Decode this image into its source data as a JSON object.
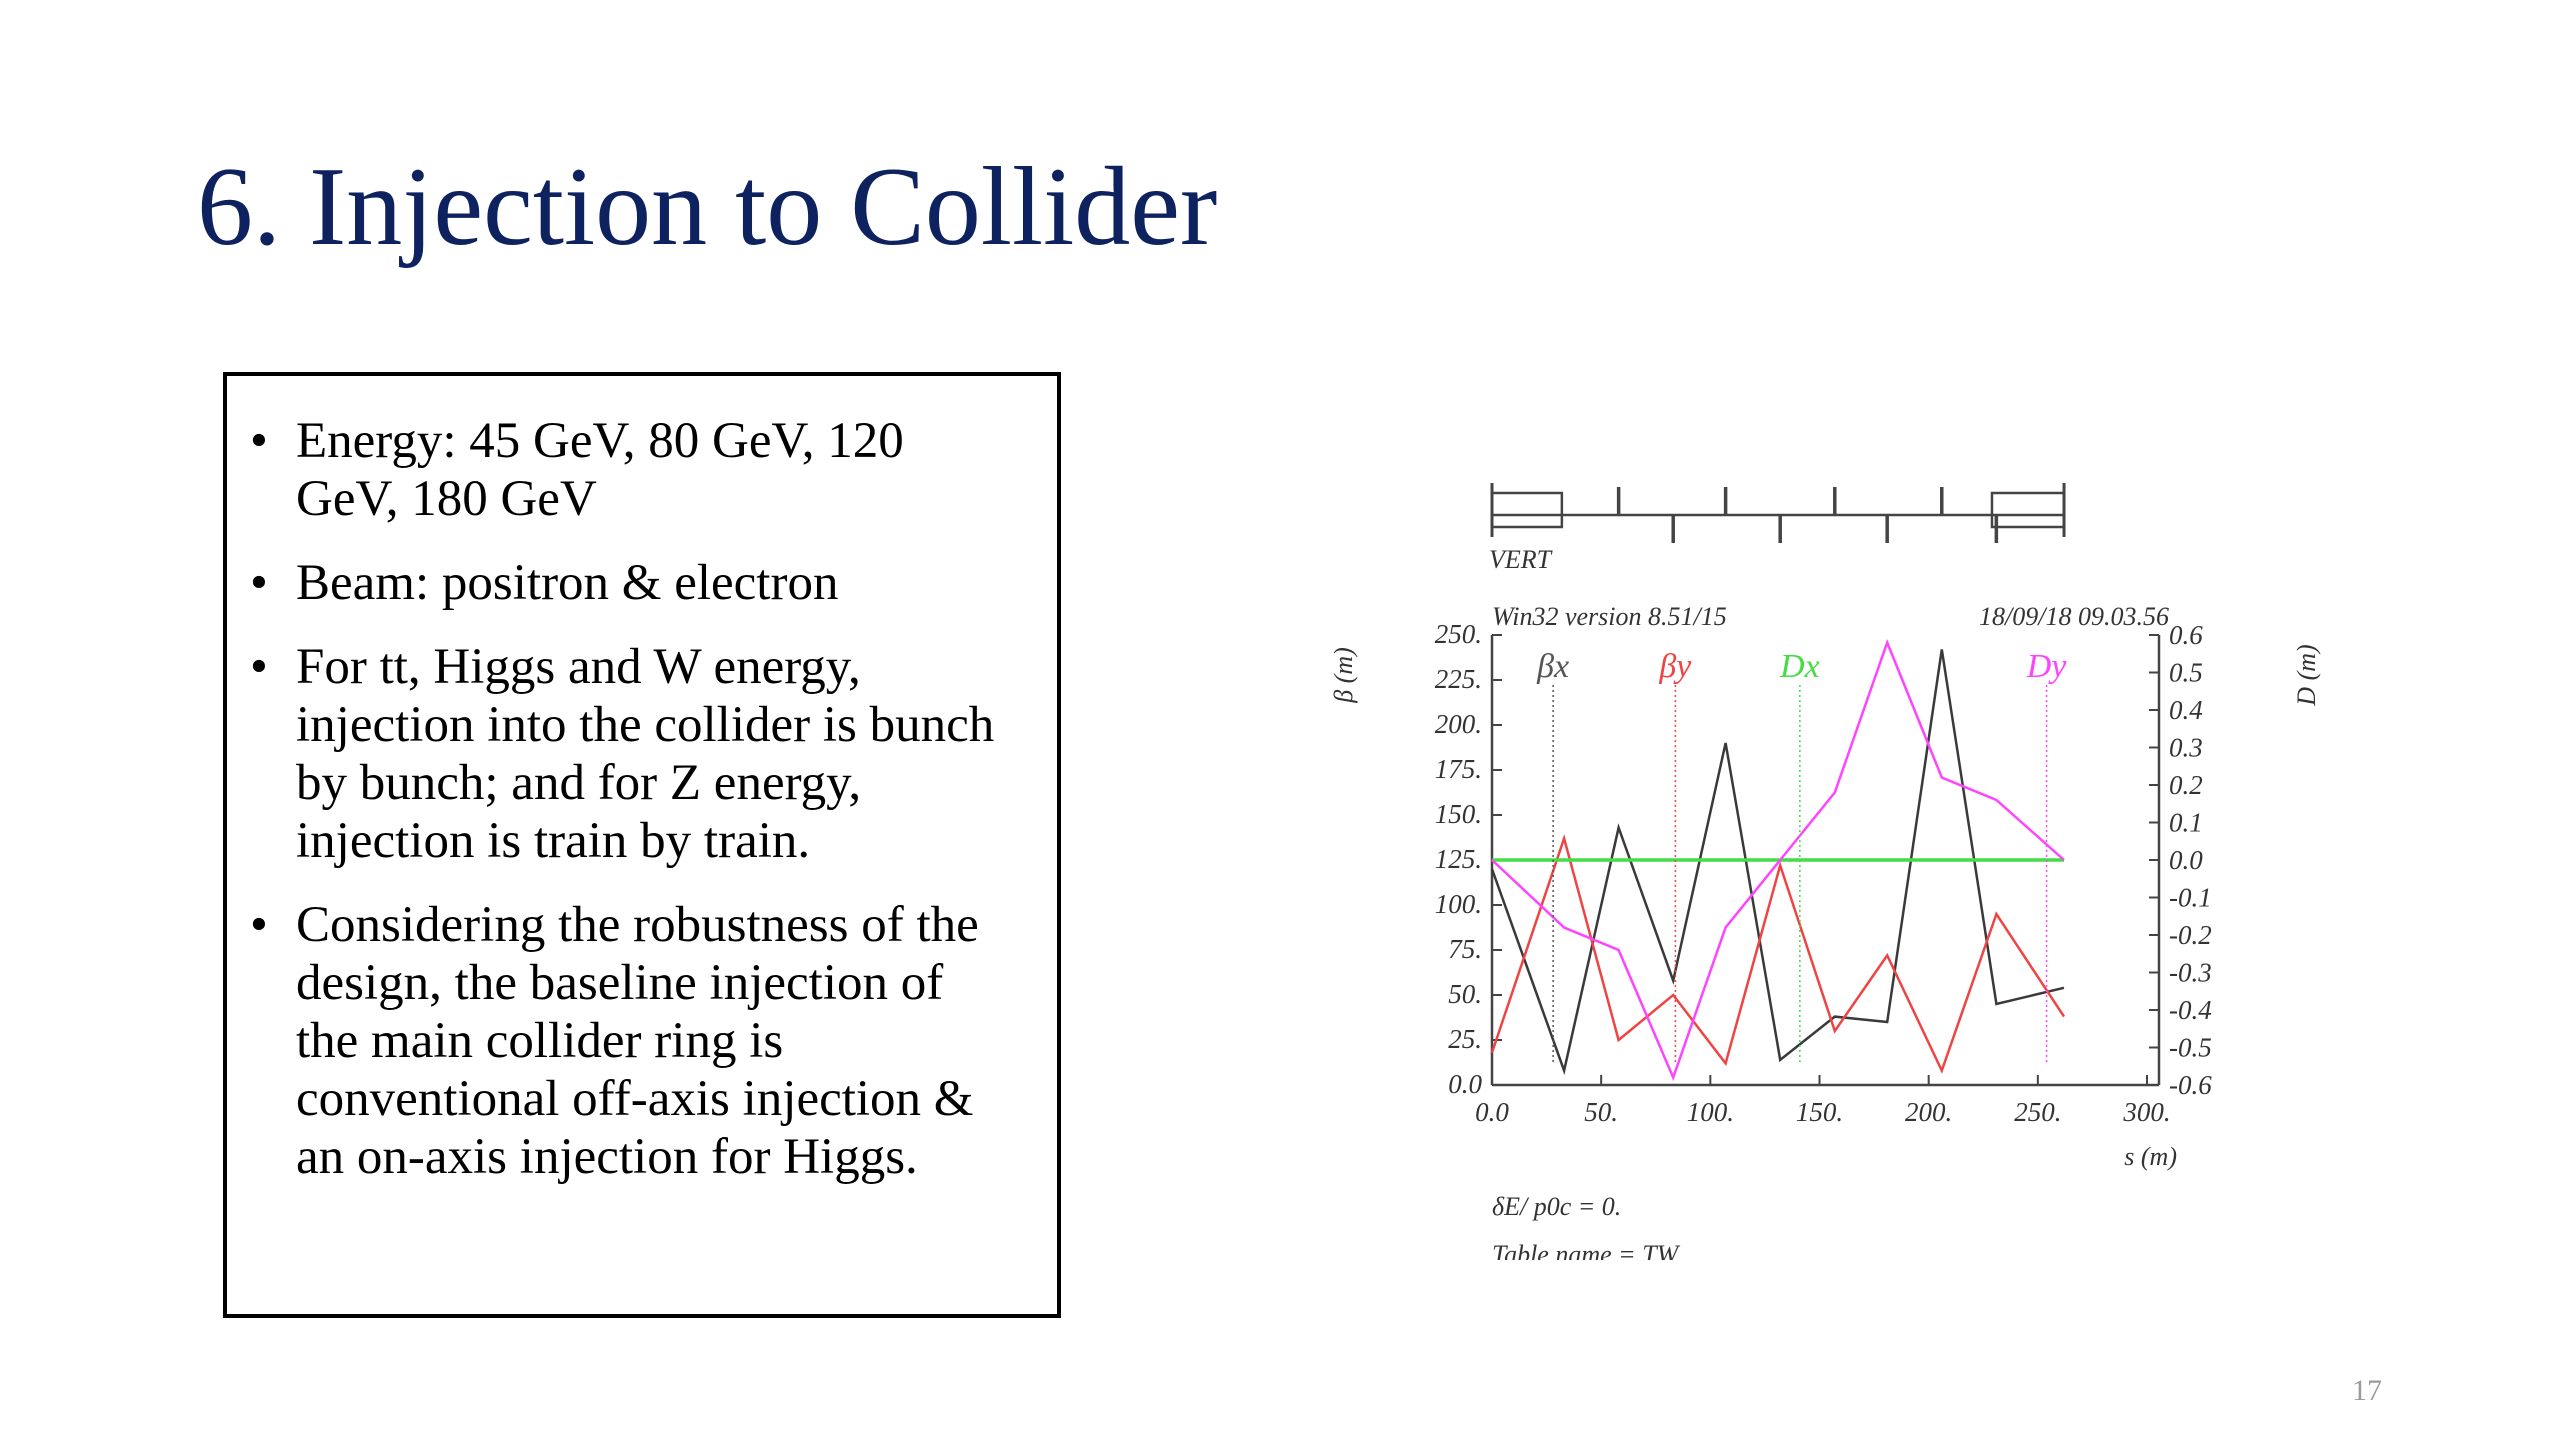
{
  "slide": {
    "title": "6. Injection to Collider",
    "page_number": "17"
  },
  "bullets": [
    {
      "text": "Energy: 45 GeV, 80 GeV, 120 GeV, 180 GeV",
      "lines": [
        "Energy: 45 GeV, 80 GeV, 120",
        "GeV, 180 GeV"
      ]
    },
    {
      "text": "Beam: positron & electron",
      "lines": [
        "Beam: positron & electron"
      ]
    },
    {
      "text": "For tt, Higgs and W energy, injection into the collider is bunch by bunch; and for Z energy, injection is train by train.",
      "lines": [
        "For tt, Higgs and W energy,",
        "injection into the collider is bunch",
        "by bunch; and for Z energy,",
        "injection is train by train."
      ]
    },
    {
      "text": "Considering the robustness of the design, the baseline injection of the main collider ring is conventional off-axis injection & an on-axis injection for Higgs.",
      "lines": [
        "Considering the robustness of the",
        "design, the baseline injection of",
        "the main collider ring is",
        "conventional off-axis injection &",
        "an on-axis injection for Higgs."
      ]
    }
  ],
  "bullet_marker": "•",
  "chart_data": {
    "type": "line",
    "header_left": "Win32 version 8.51/15",
    "header_right": "18/09/18  09.03.56",
    "lattice_label": "VERT",
    "ylabel_left": "β (m)",
    "ylabel_right": "D (m)",
    "xlabel": "s (m)",
    "xlim": [
      0,
      300
    ],
    "ylim_left": [
      0,
      250
    ],
    "ylim_right": [
      -0.6,
      0.6
    ],
    "x_ticks": [
      "0.0",
      "50.",
      "100.",
      "150.",
      "200.",
      "250.",
      "300."
    ],
    "y_left_ticks": [
      "0.0",
      "25.",
      "50.",
      "75.",
      "100.",
      "125.",
      "150.",
      "175.",
      "200.",
      "225.",
      "250."
    ],
    "y_right_ticks": [
      "-0.6",
      "-0.5",
      "-0.4",
      "-0.3",
      "-0.2",
      "-0.1",
      "0.0",
      "0.1",
      "0.2",
      "0.3",
      "0.4",
      "0.5",
      "0.6"
    ],
    "footer_line1": "δE/ p0c  =  0.",
    "footer_line2": "Table name = TW",
    "series": [
      {
        "name": "βx",
        "axis": "left",
        "color": "#3a3a3a",
        "x": [
          0,
          33,
          58,
          83,
          107,
          132,
          157,
          181,
          206,
          231,
          262
        ],
        "y": [
          120,
          8,
          143,
          58,
          190,
          14,
          38,
          35,
          242,
          45,
          54
        ]
      },
      {
        "name": "βy",
        "axis": "left",
        "color": "#ee4444",
        "x": [
          0,
          33,
          58,
          83,
          107,
          132,
          157,
          181,
          206,
          231,
          262
        ],
        "y": [
          18,
          137,
          25,
          50,
          12,
          122,
          30,
          72,
          8,
          95,
          38
        ]
      },
      {
        "name": "Dx",
        "axis": "right",
        "color": "#44dd44",
        "x": [
          0,
          262
        ],
        "y": [
          0.0,
          0.0
        ]
      },
      {
        "name": "Dy",
        "axis": "right",
        "color": "#ff44ff",
        "x": [
          0,
          33,
          58,
          83,
          107,
          132,
          157,
          181,
          206,
          231,
          262
        ],
        "y": [
          0.0,
          -0.18,
          -0.24,
          -0.58,
          -0.18,
          0.0,
          0.18,
          0.58,
          0.22,
          0.16,
          0.0
        ]
      }
    ],
    "markers": [
      {
        "series": "βx",
        "x": 28,
        "color": "#555555"
      },
      {
        "series": "βy",
        "x": 84,
        "color": "#ee4444"
      },
      {
        "series": "Dx",
        "x": 141,
        "color": "#44dd44"
      },
      {
        "series": "Dy",
        "x": 254,
        "color": "#ff44ff"
      }
    ]
  }
}
